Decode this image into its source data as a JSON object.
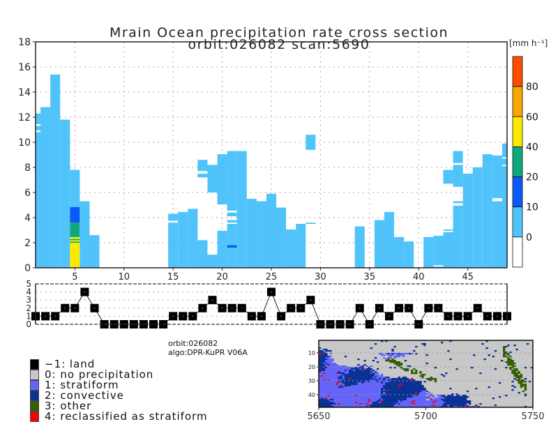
{
  "header": {
    "title_line1": "Mrain Ocean precipitation rate cross section",
    "title_line2": "orbit:026082    scan:5690"
  },
  "info": {
    "orbit": "orbit:026082",
    "algo": "algo:DPR-KuPR V06A"
  },
  "chart_data": [
    {
      "id": "cross-section",
      "type": "heatmap",
      "title": "Mrain Ocean precipitation rate cross section",
      "xlabel": "",
      "ylabel": "",
      "xlim": [
        1,
        49
      ],
      "ylim": [
        0,
        18
      ],
      "xticks": [
        5,
        10,
        15,
        20,
        25,
        30,
        35,
        40,
        45
      ],
      "yticks": [
        0,
        2,
        4,
        6,
        8,
        10,
        12,
        14,
        16,
        18
      ],
      "grid": true,
      "units": "[mm h⁻¹]",
      "colorbar": {
        "ticks": [
          "0",
          "10",
          "20",
          "40",
          "60",
          "80"
        ],
        "bins": [
          {
            "range": "<0",
            "color": "#ffffff"
          },
          {
            "range": "0-10",
            "color": "#50c3fa"
          },
          {
            "range": "10-20",
            "color": "#0a5af5"
          },
          {
            "range": "20-40",
            "color": "#0fa87c"
          },
          {
            "range": "40-60",
            "color": "#fbe900"
          },
          {
            "range": "60-80",
            "color": "#f6a800"
          },
          {
            "range": ">80",
            "color": "#fb4f00"
          }
        ]
      },
      "columns": [
        {
          "x": 1,
          "segments": [
            [
              0,
              10.8,
              1
            ],
            [
              10.95,
              11.3,
              1
            ],
            [
              11.45,
              12.3,
              1
            ]
          ]
        },
        {
          "x": 2,
          "segments": [
            [
              0,
              12.8,
              1
            ]
          ]
        },
        {
          "x": 3,
          "segments": [
            [
              0,
              15.4,
              1
            ]
          ]
        },
        {
          "x": 4,
          "segments": [
            [
              0,
              11.8,
              1
            ]
          ]
        },
        {
          "x": 5,
          "segments": [
            [
              0,
              2.0,
              4
            ],
            [
              2.0,
              2.1,
              3
            ],
            [
              2.1,
              2.2,
              4
            ],
            [
              2.2,
              2.3,
              3
            ],
            [
              2.3,
              2.45,
              4
            ],
            [
              2.45,
              3.6,
              3
            ],
            [
              3.6,
              4.85,
              2
            ],
            [
              4.85,
              7.8,
              1
            ]
          ]
        },
        {
          "x": 6,
          "segments": [
            [
              0,
              5.3,
              1
            ]
          ]
        },
        {
          "x": 7,
          "segments": [
            [
              0,
              2.6,
              1
            ]
          ]
        },
        {
          "x": 15,
          "segments": [
            [
              0,
              3.6,
              1
            ],
            [
              3.75,
              4.3,
              1
            ]
          ]
        },
        {
          "x": 16,
          "segments": [
            [
              0,
              4.45,
              1
            ]
          ]
        },
        {
          "x": 17,
          "segments": [
            [
              0,
              4.7,
              1
            ]
          ]
        },
        {
          "x": 18,
          "segments": [
            [
              0,
              2.2,
              1
            ],
            [
              7.2,
              7.5,
              1
            ],
            [
              7.7,
              8.6,
              1
            ]
          ]
        },
        {
          "x": 19,
          "segments": [
            [
              0,
              1.05,
              1
            ],
            [
              6.0,
              8.2,
              1
            ]
          ]
        },
        {
          "x": 20,
          "segments": [
            [
              0,
              2.95,
              1
            ],
            [
              5.05,
              9.05,
              1
            ]
          ]
        },
        {
          "x": 21,
          "segments": [
            [
              0,
              1.6,
              1
            ],
            [
              1.6,
              1.8,
              2
            ],
            [
              1.8,
              3.5,
              1
            ],
            [
              3.6,
              3.8,
              1
            ],
            [
              4.1,
              4.4,
              1
            ],
            [
              4.55,
              9.3,
              1
            ]
          ]
        },
        {
          "x": 22,
          "segments": [
            [
              0,
              9.3,
              1
            ]
          ]
        },
        {
          "x": 23,
          "segments": [
            [
              0,
              5.5,
              1
            ]
          ]
        },
        {
          "x": 24,
          "segments": [
            [
              0,
              5.3,
              1
            ]
          ]
        },
        {
          "x": 25,
          "segments": [
            [
              0,
              5.9,
              1
            ]
          ]
        },
        {
          "x": 26,
          "segments": [
            [
              0,
              4.8,
              1
            ]
          ]
        },
        {
          "x": 27,
          "segments": [
            [
              0,
              3.05,
              1
            ]
          ]
        },
        {
          "x": 28,
          "segments": [
            [
              0,
              3.5,
              1
            ]
          ]
        },
        {
          "x": 29,
          "segments": [
            [
              3.5,
              3.6,
              1
            ],
            [
              9.4,
              10.6,
              1
            ]
          ]
        },
        {
          "x": 34,
          "segments": [
            [
              0,
              3.3,
              1
            ]
          ]
        },
        {
          "x": 36,
          "segments": [
            [
              0,
              3.8,
              1
            ]
          ]
        },
        {
          "x": 37,
          "segments": [
            [
              0,
              4.45,
              1
            ]
          ]
        },
        {
          "x": 38,
          "segments": [
            [
              0,
              2.45,
              1
            ]
          ]
        },
        {
          "x": 39,
          "segments": [
            [
              0,
              2.1,
              1
            ]
          ]
        },
        {
          "x": 41,
          "segments": [
            [
              0,
              2.45,
              1
            ]
          ]
        },
        {
          "x": 42,
          "segments": [
            [
              0,
              0.1,
              1
            ],
            [
              0.2,
              2.55,
              1
            ]
          ]
        },
        {
          "x": 43,
          "segments": [
            [
              0,
              2.85,
              1
            ],
            [
              2.95,
              3.05,
              1
            ],
            [
              6.7,
              7.8,
              1
            ]
          ]
        },
        {
          "x": 44,
          "segments": [
            [
              0,
              4.95,
              1
            ],
            [
              5.15,
              5.3,
              1
            ],
            [
              6.45,
              8.2,
              1
            ],
            [
              8.35,
              9.3,
              1
            ]
          ]
        },
        {
          "x": 45,
          "segments": [
            [
              0,
              7.5,
              1
            ]
          ]
        },
        {
          "x": 46,
          "segments": [
            [
              0,
              8.0,
              1
            ]
          ]
        },
        {
          "x": 47,
          "segments": [
            [
              0,
              9.05,
              1
            ]
          ]
        },
        {
          "x": 48,
          "segments": [
            [
              0,
              5.3,
              1
            ],
            [
              5.55,
              8.95,
              1
            ]
          ]
        },
        {
          "x": 49,
          "segments": [
            [
              0,
              8.1,
              1
            ],
            [
              8.2,
              8.7,
              1
            ],
            [
              8.8,
              9.9,
              1
            ]
          ]
        }
      ]
    },
    {
      "id": "precip-type",
      "type": "line",
      "xlim": [
        1,
        49
      ],
      "ylim": [
        0,
        5
      ],
      "yticks": [
        "0",
        "1",
        "2",
        "3",
        "4",
        "5"
      ],
      "grid": true,
      "x": [
        1,
        2,
        3,
        4,
        5,
        6,
        7,
        8,
        9,
        10,
        11,
        12,
        13,
        14,
        15,
        16,
        17,
        18,
        19,
        20,
        21,
        22,
        23,
        24,
        25,
        26,
        27,
        28,
        29,
        30,
        31,
        32,
        33,
        34,
        35,
        36,
        37,
        38,
        39,
        40,
        41,
        42,
        43,
        44,
        45,
        46,
        47,
        48,
        49
      ],
      "values": [
        1,
        1,
        1,
        2,
        2,
        4,
        2,
        0,
        0,
        0,
        0,
        0,
        0,
        0,
        1,
        1,
        1,
        2,
        3,
        2,
        2,
        2,
        1,
        1,
        4,
        1,
        2,
        2,
        3,
        0,
        0,
        0,
        0,
        2,
        0,
        2,
        1,
        2,
        2,
        0,
        2,
        2,
        1,
        1,
        1,
        2,
        1,
        1,
        1
      ]
    },
    {
      "id": "type-map",
      "type": "heatmap",
      "xlim": [
        5650,
        5750
      ],
      "ylim": [
        1,
        49
      ],
      "xticks": [
        "5650",
        "5700",
        "5750"
      ],
      "yticks": [
        "10",
        "20",
        "30",
        "40"
      ],
      "grid": true
    }
  ],
  "legend": [
    {
      "label": "−1: land",
      "color": "#000000"
    },
    {
      "label": "0: no precipitation",
      "color": "#c8c8c8"
    },
    {
      "label": "1: stratiform",
      "color": "#6464fa"
    },
    {
      "label": "2: convective",
      "color": "#0a3296"
    },
    {
      "label": "3: other",
      "color": "#325f00"
    },
    {
      "label": "4: reclassified as stratiform",
      "color": "#fa0000"
    }
  ]
}
